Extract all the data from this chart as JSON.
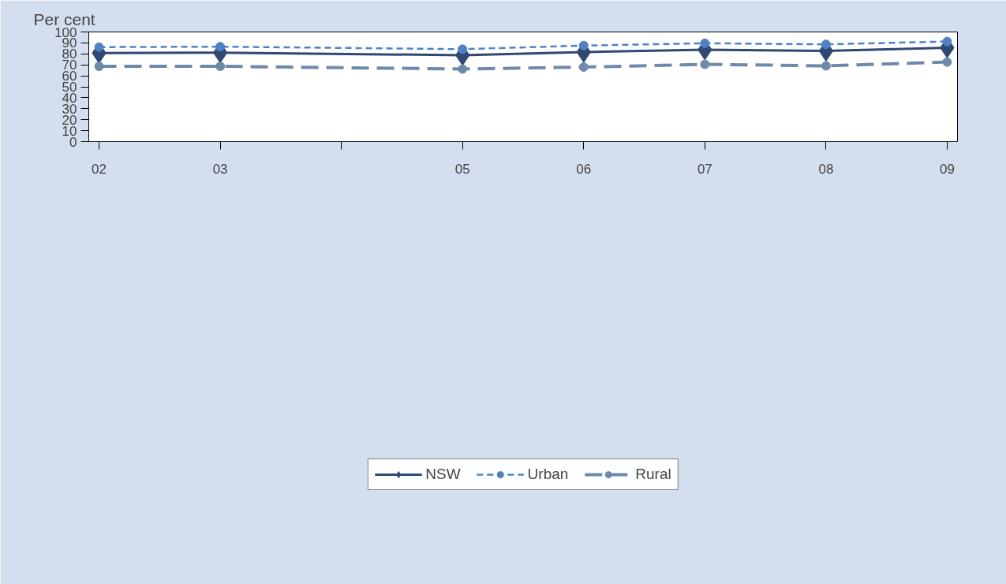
{
  "chart_data": {
    "type": "line",
    "ylabel": "Per cent",
    "x": [
      2002,
      2003,
      2005,
      2006,
      2007,
      2008,
      2009
    ],
    "xlim": [
      2001.915,
      2009.085
    ],
    "xticks": [
      {
        "value": 2002,
        "label": "02"
      },
      {
        "value": 2003,
        "label": "03"
      },
      {
        "value": 2004,
        "label": null
      },
      {
        "value": 2005,
        "label": "05"
      },
      {
        "value": 2006,
        "label": "06"
      },
      {
        "value": 2007,
        "label": "07"
      },
      {
        "value": 2008,
        "label": "08"
      },
      {
        "value": 2009,
        "label": "09"
      }
    ],
    "ylim": [
      0,
      100
    ],
    "yticks": [
      0,
      10,
      20,
      30,
      40,
      50,
      60,
      70,
      80,
      90,
      100
    ],
    "grid": false,
    "legend": "bottom",
    "series": [
      {
        "name": "NSW",
        "color": "#2e4a73",
        "marker": "diamond",
        "line_style": "solid",
        "values": [
          80.8,
          81.2,
          78.8,
          81.6,
          83.9,
          82.7,
          85.6
        ]
      },
      {
        "name": "Urban",
        "color": "#4f81c4",
        "marker": "circle",
        "line_style": "dashed",
        "values": [
          86.2,
          86.6,
          84.3,
          87.6,
          89.7,
          88.7,
          91.3
        ]
      },
      {
        "name": "Rural",
        "color": "#6f89ab",
        "marker": "circle",
        "line_style": "dashed",
        "values": [
          68.7,
          68.7,
          66.2,
          68.0,
          70.5,
          69.1,
          72.6
        ]
      }
    ]
  }
}
